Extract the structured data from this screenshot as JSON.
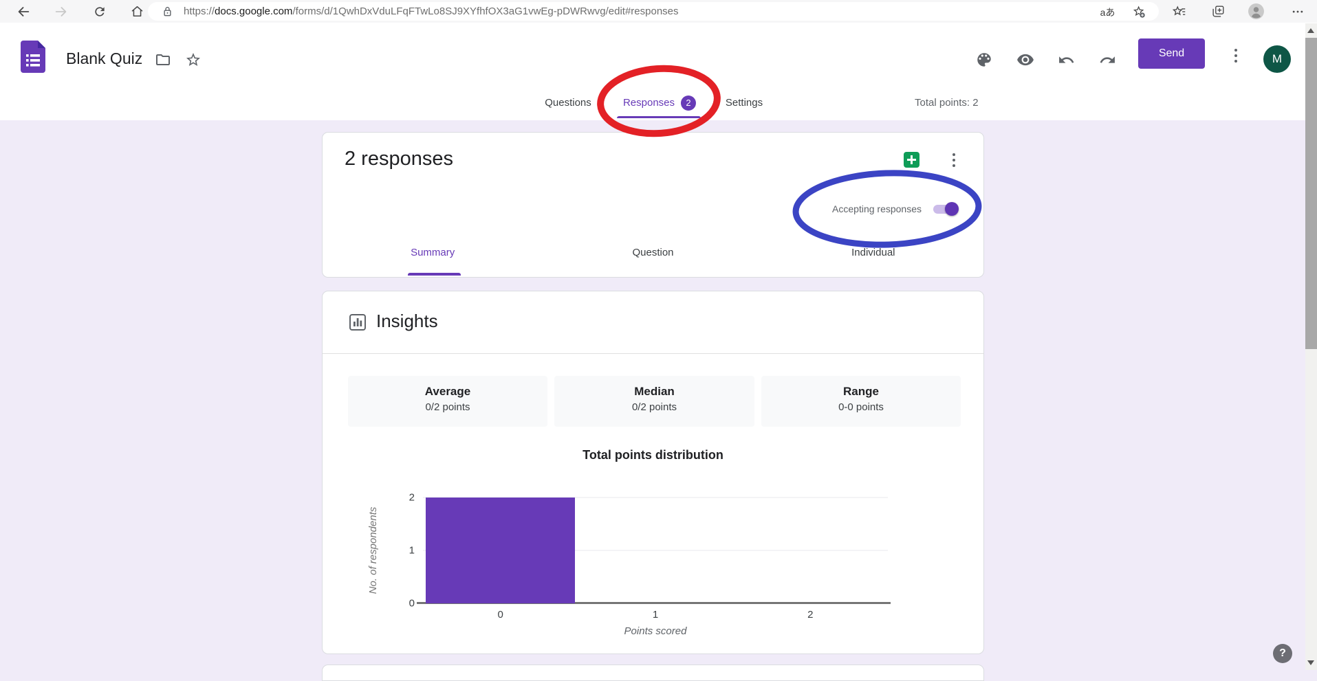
{
  "browser": {
    "url_scheme": "https://",
    "url_domain": "docs.google.com",
    "url_path": "/forms/d/1QwhDxVduLFqFTwLo8SJ9XYfhfOX3aG1vwEg-pDWRwvg/edit#responses",
    "translate_icon_label": "aあ"
  },
  "header": {
    "app_title": "Blank Quiz",
    "send_button": "Send",
    "avatar_initial": "M"
  },
  "nav_tabs": {
    "questions": "Questions",
    "responses": "Responses",
    "responses_count": "2",
    "settings": "Settings",
    "total_points": "Total points: 2"
  },
  "responses_card": {
    "title": "2 responses",
    "accepting_toggle_label": "Accepting responses",
    "toggle_state": "on",
    "subtabs": [
      {
        "label": "Summary",
        "active": true
      },
      {
        "label": "Question",
        "active": false
      },
      {
        "label": "Individual",
        "active": false
      }
    ]
  },
  "insights_card": {
    "section_title": "Insights",
    "stats": [
      {
        "label": "Average",
        "value": "0/2 points"
      },
      {
        "label": "Median",
        "value": "0/2 points"
      },
      {
        "label": "Range",
        "value": "0-0 points"
      }
    ],
    "chart_data": {
      "type": "bar",
      "title": "Total points distribution",
      "categories": [
        "0",
        "1",
        "2"
      ],
      "values": [
        2,
        0,
        0
      ],
      "xlabel": "Points scored",
      "ylabel": "No. of respondents",
      "ylim": [
        0,
        2
      ],
      "yticks": [
        0,
        1,
        2
      ],
      "grid": true,
      "legend": "none",
      "bar_color": "#673ab7"
    }
  },
  "help_button_label": "?",
  "colors": {
    "accent_purple": "#673ab7",
    "page_background": "#f0ebf8",
    "annotation_red": "#e32126",
    "annotation_blue": "#3b44c4",
    "toggle_track": "#cbbbe9",
    "toggle_thumb": "#5f35b4",
    "sheets_green": "#0f9d58",
    "avatar_green": "#0e5646"
  }
}
